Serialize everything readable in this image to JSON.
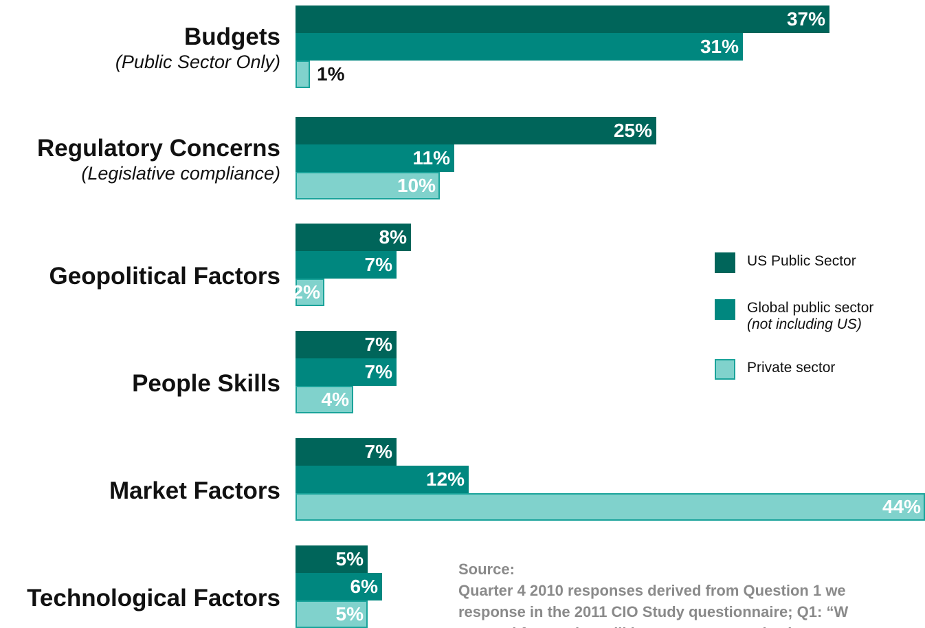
{
  "chart_data": {
    "type": "bar",
    "orientation": "horizontal",
    "categories": [
      {
        "title": "Budgets",
        "subtitle": "(Public Sector Only)"
      },
      {
        "title": "Regulatory Concerns",
        "subtitle": "(Legislative compliance)"
      },
      {
        "title": "Geopolitical Factors",
        "subtitle": ""
      },
      {
        "title": "People Skills",
        "subtitle": ""
      },
      {
        "title": "Market Factors",
        "subtitle": ""
      },
      {
        "title": "Technological Factors",
        "subtitle": ""
      }
    ],
    "series": [
      {
        "name": "US Public Sector",
        "sub": "",
        "color": "#00655a",
        "values": [
          37,
          25,
          8,
          7,
          7,
          5
        ],
        "labels": [
          "37%",
          "25%",
          "8%",
          "7%",
          "7%",
          "5%"
        ]
      },
      {
        "name": "Global public sector",
        "sub": "(not including US)",
        "color": "#00877f",
        "values": [
          31,
          11,
          7,
          7,
          12,
          6
        ],
        "labels": [
          "31%",
          "11%",
          "7%",
          "7%",
          "12%",
          "6%"
        ]
      },
      {
        "name": "Private sector",
        "sub": "",
        "color": "#80d2cc",
        "border": "#1aa39a",
        "values": [
          1,
          10,
          2,
          4,
          44,
          5
        ],
        "labels": [
          "1%",
          "10%",
          "2%",
          "4%",
          "44%",
          "5%"
        ]
      }
    ],
    "xlim": [
      0,
      44
    ],
    "grid": false,
    "legend": "right"
  },
  "source": {
    "heading": "Source:",
    "lines": [
      "Quarter 4 2010 responses derived from Question 1 we",
      "response in the 2011 CIO Study questionnaire; Q1: “W",
      "external forces that will impact your organization"
    ]
  }
}
